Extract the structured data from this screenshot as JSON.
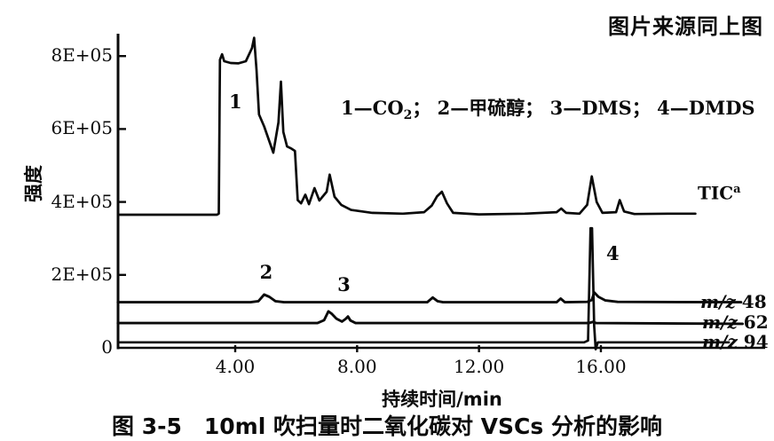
{
  "header": {
    "source_note": "图片来源同上图"
  },
  "caption": "图 3-5　10ml 吹扫量时二氧化碳对 VSCs 分析的影响",
  "chart_data": {
    "type": "line",
    "title": "图 3-5 10ml 吹扫量时二氧化碳对 VSCs 分析的影响",
    "xlabel": "持续时间/min",
    "ylabel": "强度",
    "xlim": [
      0,
      21
    ],
    "ylim": [
      0,
      900000
    ],
    "grid": false,
    "legend_position": "top-center-inside",
    "legend": {
      "pre_sub": "1—CO",
      "sub": "2",
      "post_sub": "； 2—甲硫醇； 3—DMS； 4—DMDS"
    },
    "x_ticks": [
      {
        "label": "4.00",
        "value": 4
      },
      {
        "label": "8.00",
        "value": 8
      },
      {
        "label": "12.00",
        "value": 12
      },
      {
        "label": "16.00",
        "value": 16
      }
    ],
    "y_ticks": [
      {
        "label": "8E+05",
        "value": 800000
      },
      {
        "label": "6E+05",
        "value": 600000
      },
      {
        "label": "4E+05",
        "value": 400000
      },
      {
        "label": "2E+05",
        "value": 200000
      },
      {
        "label": "0",
        "value": 0
      }
    ],
    "annotations": [
      {
        "label": "1",
        "t": 3.94,
        "v": 674000
      },
      {
        "label": "2",
        "t": 4.95,
        "v": 208000
      },
      {
        "label": "3",
        "t": 7.5,
        "v": 172000
      },
      {
        "label": "4",
        "t": 16.32,
        "v": 258000
      }
    ],
    "series": [
      {
        "id": "tic",
        "label": "TIC",
        "label_sup": "a",
        "points": [
          [
            0.15,
            365000
          ],
          [
            3.4,
            365000
          ],
          [
            3.46,
            368000
          ],
          [
            3.5,
            790000
          ],
          [
            3.57,
            805000
          ],
          [
            3.64,
            786000
          ],
          [
            3.85,
            781000
          ],
          [
            4.1,
            780000
          ],
          [
            4.35,
            786000
          ],
          [
            4.55,
            822000
          ],
          [
            4.62,
            850000
          ],
          [
            4.7,
            762000
          ],
          [
            4.78,
            640000
          ],
          [
            4.95,
            607000
          ],
          [
            5.25,
            535000
          ],
          [
            5.42,
            618000
          ],
          [
            5.5,
            730000
          ],
          [
            5.58,
            592000
          ],
          [
            5.7,
            552000
          ],
          [
            5.85,
            546000
          ],
          [
            5.96,
            540000
          ],
          [
            6.05,
            405000
          ],
          [
            6.16,
            396000
          ],
          [
            6.3,
            420000
          ],
          [
            6.42,
            394000
          ],
          [
            6.6,
            438000
          ],
          [
            6.76,
            404000
          ],
          [
            7.0,
            428000
          ],
          [
            7.1,
            475000
          ],
          [
            7.26,
            414000
          ],
          [
            7.48,
            392000
          ],
          [
            7.8,
            378000
          ],
          [
            8.5,
            370000
          ],
          [
            9.5,
            368000
          ],
          [
            10.2,
            372000
          ],
          [
            10.45,
            390000
          ],
          [
            10.62,
            415000
          ],
          [
            10.78,
            428000
          ],
          [
            10.95,
            396000
          ],
          [
            11.15,
            370000
          ],
          [
            12.0,
            366000
          ],
          [
            13.5,
            368000
          ],
          [
            14.55,
            372000
          ],
          [
            14.7,
            382000
          ],
          [
            14.86,
            370000
          ],
          [
            15.3,
            368000
          ],
          [
            15.55,
            392000
          ],
          [
            15.7,
            470000
          ],
          [
            15.86,
            400000
          ],
          [
            16.05,
            370000
          ],
          [
            16.5,
            372000
          ],
          [
            16.62,
            405000
          ],
          [
            16.76,
            374000
          ],
          [
            17.1,
            367000
          ],
          [
            18.2,
            368000
          ],
          [
            19.1,
            368000
          ]
        ]
      },
      {
        "id": "mz48",
        "label_prefix": "m/z",
        "label_value": "48",
        "points": [
          [
            0.15,
            125000
          ],
          [
            4.5,
            125000
          ],
          [
            4.76,
            128000
          ],
          [
            4.95,
            146000
          ],
          [
            5.12,
            140000
          ],
          [
            5.32,
            128000
          ],
          [
            5.6,
            125000
          ],
          [
            10.3,
            125000
          ],
          [
            10.48,
            138000
          ],
          [
            10.64,
            128000
          ],
          [
            10.82,
            125000
          ],
          [
            14.55,
            125000
          ],
          [
            14.68,
            135000
          ],
          [
            14.82,
            125000
          ],
          [
            15.55,
            126000
          ],
          [
            15.7,
            131000
          ],
          [
            15.78,
            152000
          ],
          [
            15.92,
            140000
          ],
          [
            16.15,
            130000
          ],
          [
            16.55,
            126000
          ],
          [
            20.6,
            125000
          ]
        ]
      },
      {
        "id": "mz62",
        "label_prefix": "m/z",
        "label_value": "62",
        "points": [
          [
            0.15,
            68000
          ],
          [
            6.7,
            68000
          ],
          [
            6.92,
            76000
          ],
          [
            7.06,
            100000
          ],
          [
            7.16,
            94000
          ],
          [
            7.32,
            80000
          ],
          [
            7.5,
            72000
          ],
          [
            7.62,
            79000
          ],
          [
            7.7,
            86000
          ],
          [
            7.78,
            75000
          ],
          [
            7.95,
            68000
          ],
          [
            12.0,
            68000
          ],
          [
            15.6,
            68000
          ],
          [
            15.74,
            71000
          ],
          [
            15.85,
            68000
          ],
          [
            20.65,
            66000
          ]
        ]
      },
      {
        "id": "mz94",
        "label_prefix": "m/z",
        "label_value": "94",
        "points": [
          [
            0.15,
            15000
          ],
          [
            15.45,
            15000
          ],
          [
            15.58,
            20000
          ],
          [
            15.66,
            328000
          ],
          [
            15.71,
            328000
          ],
          [
            15.78,
            60000
          ],
          [
            15.83,
            -4000
          ],
          [
            15.9,
            15000
          ],
          [
            20.2,
            15000
          ]
        ]
      }
    ]
  }
}
